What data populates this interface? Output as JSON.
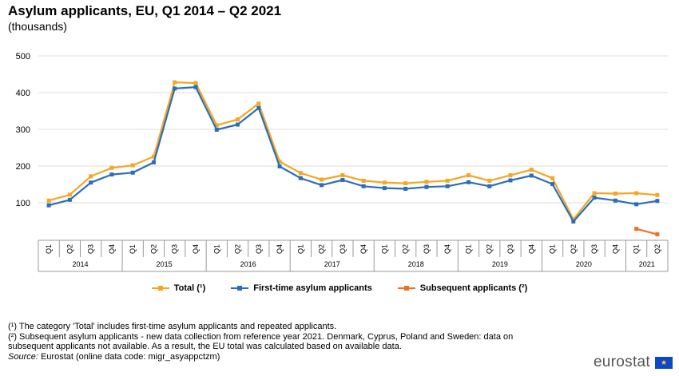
{
  "chart_data": {
    "type": "line",
    "title": "Asylum applicants, EU, Q1 2014 – Q2 2021",
    "subtitle": "(thousands)",
    "quarters": [
      "Q1",
      "Q2",
      "Q3",
      "Q4"
    ],
    "years": [
      "2014",
      "2015",
      "2016",
      "2017",
      "2018",
      "2019",
      "2020",
      "2021"
    ],
    "categories": [
      "2014 Q1",
      "2014 Q2",
      "2014 Q3",
      "2014 Q4",
      "2015 Q1",
      "2015 Q2",
      "2015 Q3",
      "2015 Q4",
      "2016 Q1",
      "2016 Q2",
      "2016 Q3",
      "2016 Q4",
      "2017 Q1",
      "2017 Q2",
      "2017 Q3",
      "2017 Q4",
      "2018 Q1",
      "2018 Q2",
      "2018 Q3",
      "2018 Q4",
      "2019 Q1",
      "2019 Q2",
      "2019 Q3",
      "2019 Q4",
      "2020 Q1",
      "2020 Q2",
      "2020 Q3",
      "2020 Q4",
      "2021 Q1",
      "2021 Q2"
    ],
    "ylim": [
      0,
      500
    ],
    "yticks": [
      100,
      200,
      300,
      400,
      500
    ],
    "grid": true,
    "legend_position": "bottom",
    "series": [
      {
        "name": "Total (¹)",
        "color": "#f5a623",
        "values": [
          106,
          122,
          172,
          195,
          202,
          226,
          428,
          426,
          311,
          327,
          370,
          212,
          181,
          163,
          175,
          160,
          155,
          153,
          157,
          160,
          175,
          160,
          175,
          190,
          167,
          55,
          126,
          125,
          126,
          121
        ]
      },
      {
        "name": "First-time asylum applicants",
        "color": "#2a6ebb",
        "values": [
          93,
          108,
          155,
          177,
          182,
          210,
          411,
          415,
          299,
          313,
          358,
          199,
          167,
          148,
          162,
          145,
          140,
          138,
          143,
          145,
          156,
          145,
          161,
          174,
          151,
          49,
          114,
          106,
          96,
          105
        ]
      },
      {
        "name": "Subsequent applicants (²)",
        "color": "#f07020",
        "values": [
          null,
          null,
          null,
          null,
          null,
          null,
          null,
          null,
          null,
          null,
          null,
          null,
          null,
          null,
          null,
          null,
          null,
          null,
          null,
          null,
          null,
          null,
          null,
          null,
          null,
          null,
          null,
          null,
          29,
          14
        ]
      }
    ]
  },
  "notes": {
    "note1": "(¹) The category 'Total' includes first-time asylum applicants and repeated applicants.",
    "note2a": "(²) Subsequent asylum applicants - new data collection from reference year 2021. Denmark, Cyprus, Poland and Sweden: data on",
    "note2b": "subsequent applicants not available. As a result, the EU total was calculated based on available data.",
    "source_label": "Source:",
    "source_text": " Eurostat (online data code: migr_asyappctzm)"
  },
  "branding": {
    "logo": "eurostat"
  }
}
